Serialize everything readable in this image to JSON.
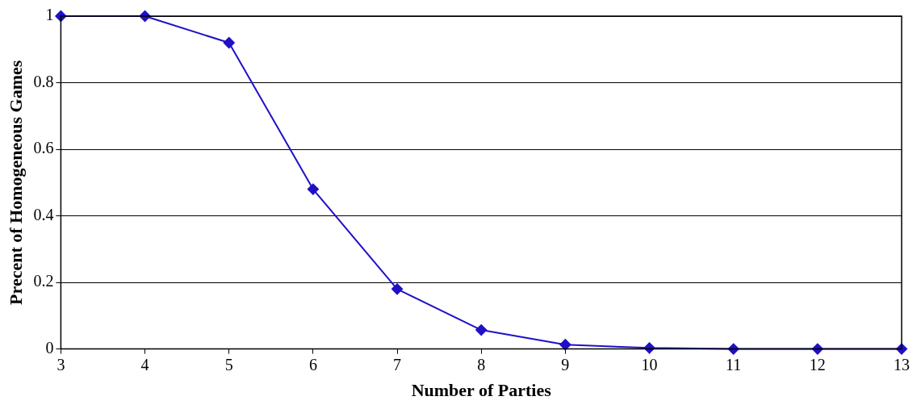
{
  "chart_data": {
    "type": "line",
    "xlabel": "Number of Parties",
    "ylabel": "Precent of Homogeneous Games",
    "x": [
      3,
      4,
      5,
      6,
      7,
      8,
      9,
      10,
      11,
      12,
      13
    ],
    "series": [
      {
        "color": "#1f10c8",
        "values": [
          1,
          1,
          0.92,
          0.48,
          0.18,
          0.057,
          0.013,
          0.003,
          0,
          0,
          0
        ]
      }
    ],
    "xlim": [
      3,
      13
    ],
    "xticks": [
      3,
      4,
      5,
      6,
      7,
      8,
      9,
      10,
      11,
      12,
      13
    ],
    "ylim": [
      0,
      1
    ],
    "yticks": [
      0,
      0.2,
      0.4,
      0.6,
      0.8,
      1
    ],
    "grid": "y",
    "legend": false,
    "marker": "diamond",
    "line_style": "solid"
  }
}
